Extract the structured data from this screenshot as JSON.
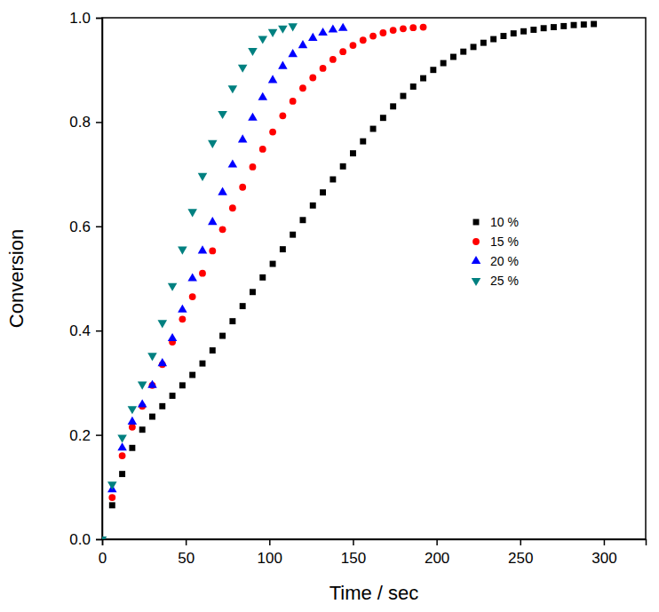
{
  "chart_data": {
    "type": "scatter",
    "x_label": "Time / sec",
    "y_label": "Conversion",
    "xlim": [
      0,
      325
    ],
    "ylim": [
      0,
      1.0
    ],
    "xticks": [
      0,
      50,
      100,
      150,
      200,
      250,
      300
    ],
    "yticks": [
      {
        "value": 0,
        "label": "0.0"
      },
      {
        "value": 0.2,
        "label": "0.2"
      },
      {
        "value": 0.4,
        "label": "0.4"
      },
      {
        "value": 0.6,
        "label": "0.6"
      },
      {
        "value": 0.8,
        "label": "0.8"
      },
      {
        "value": 1.0,
        "label": "1.0"
      }
    ],
    "grid": false,
    "legend": "right",
    "series": [
      {
        "name": "10 %",
        "color": "#000000",
        "marker": "square",
        "x": [
          6,
          12,
          18,
          24,
          30,
          36,
          42,
          48,
          54,
          60,
          66,
          72,
          78,
          84,
          90,
          96,
          102,
          108,
          114,
          120,
          126,
          132,
          138,
          144,
          150,
          156,
          162,
          168,
          174,
          180,
          186,
          192,
          198,
          204,
          210,
          216,
          222,
          228,
          234,
          240,
          246,
          252,
          258,
          264,
          270,
          276,
          282,
          288,
          294
        ],
        "values": [
          0.065,
          0.125,
          0.175,
          0.21,
          0.235,
          0.255,
          0.275,
          0.295,
          0.315,
          0.337,
          0.362,
          0.39,
          0.418,
          0.447,
          0.474,
          0.502,
          0.528,
          0.556,
          0.584,
          0.612,
          0.64,
          0.665,
          0.69,
          0.715,
          0.74,
          0.763,
          0.787,
          0.808,
          0.83,
          0.85,
          0.868,
          0.884,
          0.9,
          0.913,
          0.925,
          0.935,
          0.944,
          0.952,
          0.959,
          0.965,
          0.97,
          0.974,
          0.977,
          0.98,
          0.982,
          0.984,
          0.986,
          0.987,
          0.988
        ]
      },
      {
        "name": "15 %",
        "color": "#ff0000",
        "marker": "circle",
        "x": [
          6,
          12,
          18,
          24,
          30,
          36,
          42,
          48,
          54,
          60,
          66,
          72,
          78,
          84,
          90,
          96,
          102,
          108,
          114,
          120,
          126,
          132,
          138,
          144,
          150,
          156,
          162,
          168,
          174,
          180,
          186,
          192
        ],
        "values": [
          0.08,
          0.16,
          0.215,
          0.255,
          0.295,
          0.335,
          0.378,
          0.422,
          0.465,
          0.51,
          0.553,
          0.594,
          0.635,
          0.675,
          0.714,
          0.748,
          0.781,
          0.812,
          0.84,
          0.865,
          0.885,
          0.903,
          0.92,
          0.935,
          0.947,
          0.957,
          0.965,
          0.971,
          0.976,
          0.979,
          0.981,
          0.982
        ]
      },
      {
        "name": "20 %",
        "color": "#0000ff",
        "marker": "triangle",
        "x": [
          6,
          12,
          18,
          24,
          30,
          36,
          42,
          48,
          54,
          60,
          66,
          72,
          78,
          84,
          90,
          96,
          102,
          108,
          114,
          120,
          126,
          132,
          138,
          144
        ],
        "values": [
          0.095,
          0.175,
          0.225,
          0.258,
          0.295,
          0.337,
          0.385,
          0.44,
          0.5,
          0.553,
          0.608,
          0.665,
          0.718,
          0.766,
          0.808,
          0.847,
          0.88,
          0.907,
          0.93,
          0.947,
          0.961,
          0.971,
          0.977,
          0.98
        ]
      },
      {
        "name": "25 %",
        "color": "#008080",
        "marker": "triangle-down",
        "x": [
          0,
          6,
          12,
          18,
          24,
          30,
          36,
          42,
          48,
          54,
          60,
          66,
          72,
          78,
          84,
          90,
          96,
          102,
          108,
          114
        ],
        "values": [
          0,
          0.105,
          0.195,
          0.25,
          0.297,
          0.352,
          0.415,
          0.486,
          0.556,
          0.628,
          0.697,
          0.76,
          0.816,
          0.865,
          0.905,
          0.937,
          0.96,
          0.973,
          0.98,
          0.984
        ]
      }
    ]
  }
}
